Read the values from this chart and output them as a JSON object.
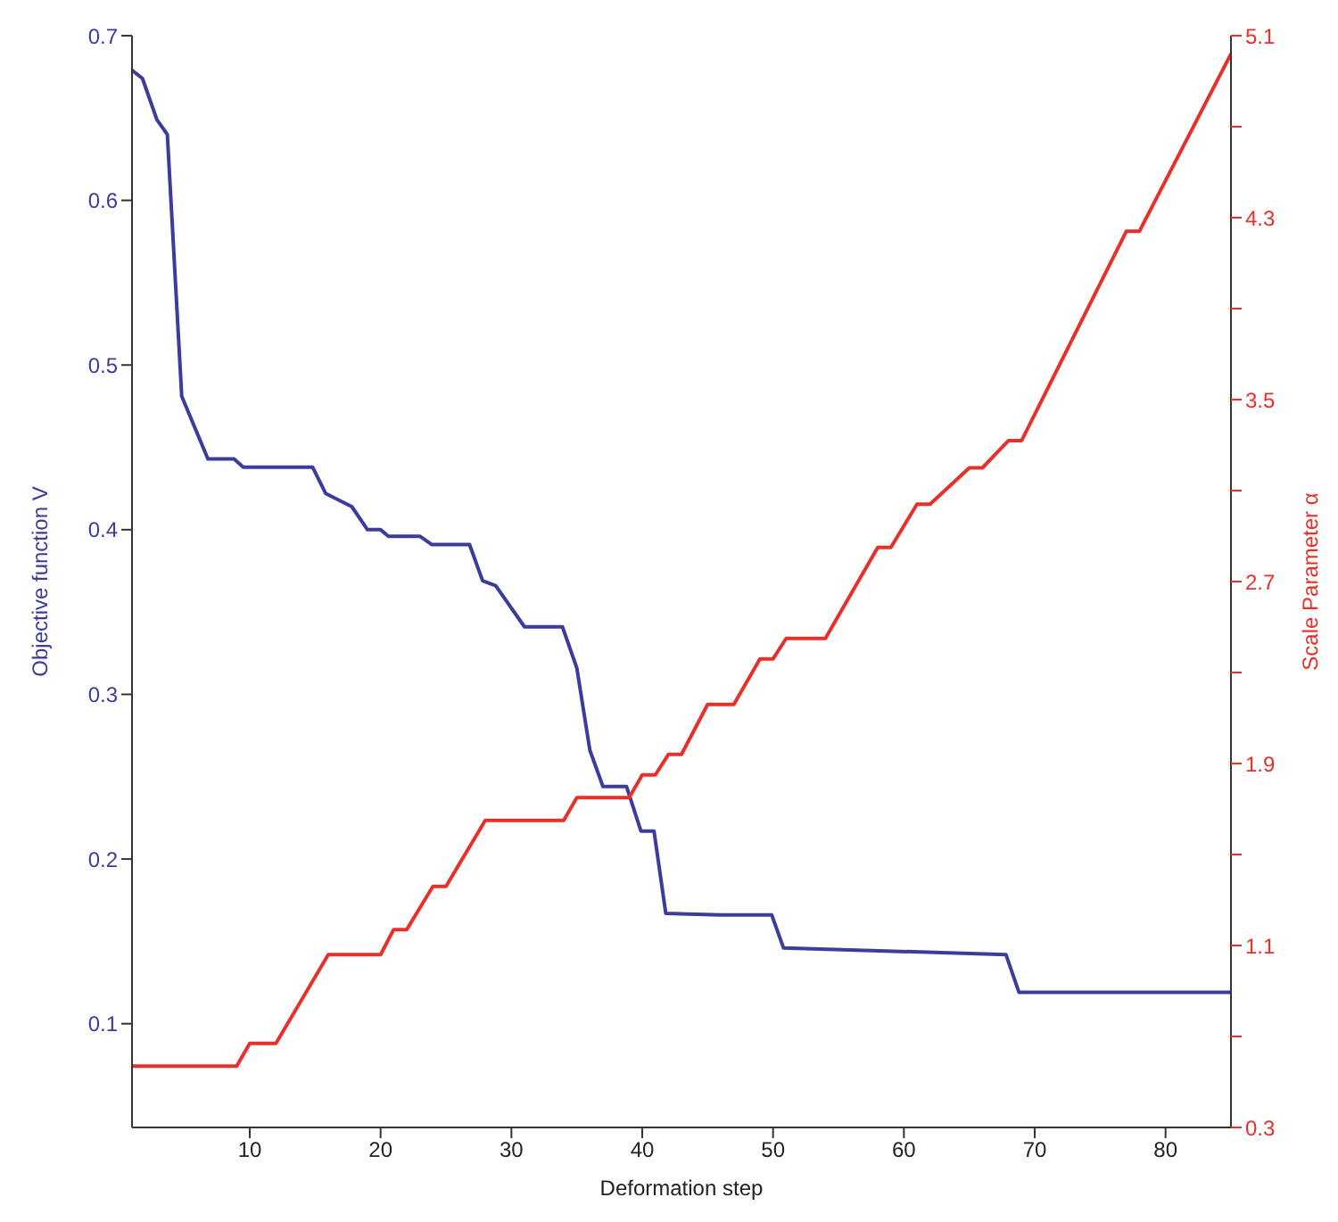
{
  "chart_data": {
    "type": "line",
    "xlabel": "Deformation step",
    "ylabel": "Objective function V",
    "y2label": "Scale Parameter α",
    "xlim": [
      1,
      85
    ],
    "xticks": [
      10,
      20,
      30,
      40,
      50,
      60,
      70,
      80
    ],
    "ylim": [
      0.037,
      0.7
    ],
    "yticks": [
      0.1,
      0.2,
      0.3,
      0.4,
      0.5,
      0.6,
      0.7
    ],
    "y2lim": [
      0.3,
      5.1
    ],
    "y2ticks": [
      0.3,
      {
        "value": 0.7,
        "label": null
      },
      1.1,
      {
        "value": 1.5,
        "label": null
      },
      1.9,
      {
        "value": 2.3,
        "label": null
      },
      2.7,
      {
        "value": 3.1,
        "label": null
      },
      3.5,
      {
        "value": 3.9,
        "label": null
      },
      4.3,
      {
        "value": 4.7,
        "label": null
      },
      5.1
    ],
    "marker": "none",
    "line_style": "solid",
    "series": [
      {
        "color": "#3c3c9c",
        "x": [
          1,
          1.8,
          2.9,
          3.7,
          4.8,
          6.8,
          8.8,
          9.5,
          14.8,
          15.8,
          17.8,
          19,
          20,
          20.6,
          23,
          23.9,
          26.8,
          27.8,
          28.8,
          31,
          33.9,
          35,
          36,
          37,
          38.8,
          39.9,
          40.9,
          41.8,
          46,
          49.9,
          50.8,
          67.8,
          68.8,
          85
        ],
        "values": [
          0.679,
          0.674,
          0.649,
          0.64,
          0.481,
          0.443,
          0.443,
          0.438,
          0.438,
          0.422,
          0.414,
          0.4,
          0.4,
          0.396,
          0.396,
          0.391,
          0.391,
          0.369,
          0.366,
          0.341,
          0.341,
          0.316,
          0.266,
          0.244,
          0.244,
          0.217,
          0.217,
          0.167,
          0.166,
          0.166,
          0.146,
          0.142,
          0.119,
          0.119
        ]
      },
      {
        "color": "#e8302a",
        "axis": "y2",
        "x": [
          1,
          9,
          10,
          12,
          16,
          20,
          21,
          22,
          24,
          25,
          28,
          34,
          35,
          39,
          40,
          41,
          42,
          43,
          45,
          47,
          49,
          50,
          51,
          54,
          58,
          59,
          61,
          62,
          65,
          66,
          68,
          69,
          77,
          78,
          85
        ],
        "values": [
          0.57,
          0.57,
          0.67,
          0.67,
          1.06,
          1.06,
          1.17,
          1.17,
          1.36,
          1.36,
          1.65,
          1.65,
          1.75,
          1.75,
          1.85,
          1.85,
          1.94,
          1.94,
          2.16,
          2.16,
          2.36,
          2.36,
          2.45,
          2.45,
          2.85,
          2.85,
          3.04,
          3.04,
          3.2,
          3.2,
          3.32,
          3.32,
          4.24,
          4.24,
          5.02
        ]
      }
    ]
  }
}
